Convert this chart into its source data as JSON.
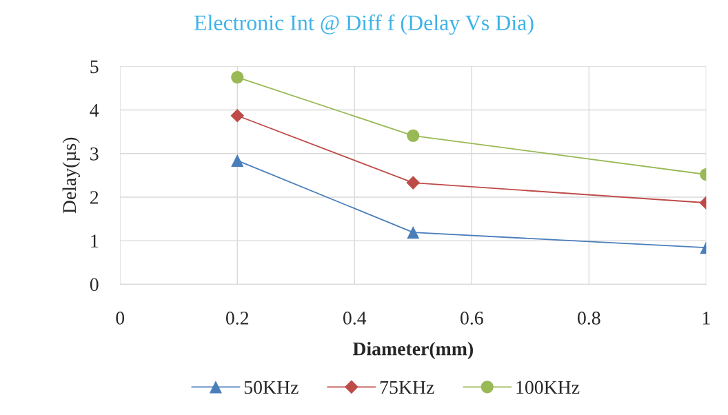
{
  "chart_data": {
    "type": "line",
    "title": "Electronic Int @ Diff f (Delay Vs Dia)",
    "xlabel": "Diameter(mm)",
    "ylabel": "Delay(µs)",
    "x": [
      0.2,
      0.5,
      1
    ],
    "series": [
      {
        "name": "50KHz",
        "color": "#4a7ebb",
        "marker": "triangle",
        "values": [
          2.84,
          1.19,
          0.84
        ]
      },
      {
        "name": "75KHz",
        "color": "#be4b48",
        "marker": "diamond",
        "values": [
          3.87,
          2.33,
          1.87
        ]
      },
      {
        "name": "100KHz",
        "color": "#98b954",
        "marker": "circle",
        "values": [
          4.75,
          3.41,
          2.52
        ]
      }
    ],
    "xlim": [
      0,
      1
    ],
    "xticks": [
      0,
      0.2,
      0.4,
      0.6,
      0.8,
      1
    ],
    "ylim": [
      0,
      5
    ],
    "yticks": [
      0,
      1,
      2,
      3,
      4,
      5
    ],
    "grid": true,
    "legend": "bottom",
    "line_style": "solid"
  }
}
